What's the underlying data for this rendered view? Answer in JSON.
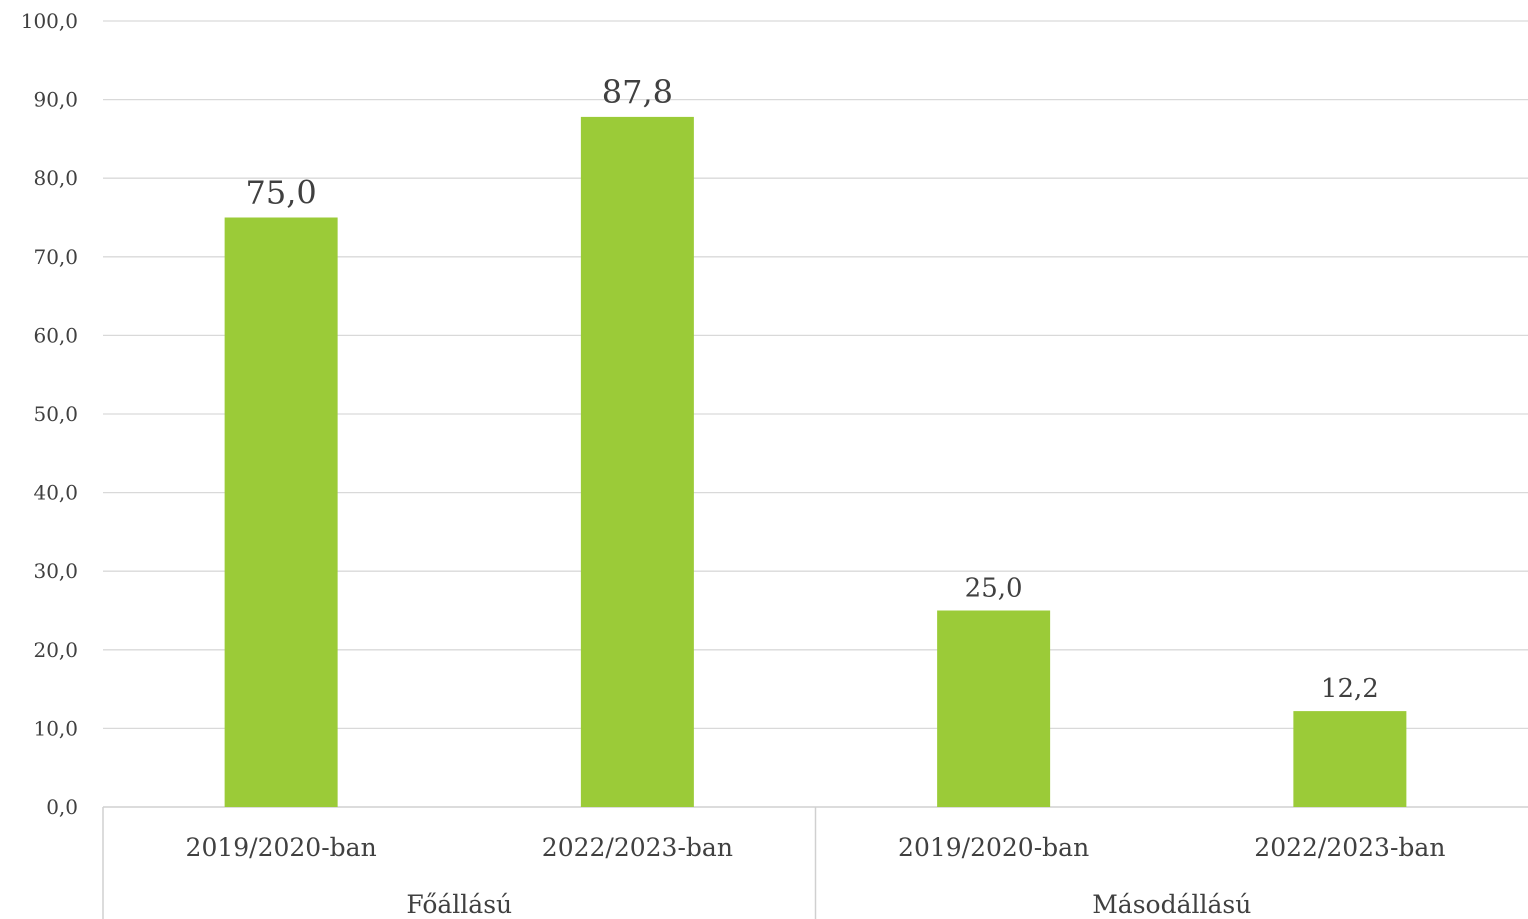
{
  "chart_data": {
    "type": "bar",
    "title": "",
    "xlabel": "",
    "ylabel": "",
    "ylim": [
      0,
      100
    ],
    "y_ticks": [
      "0,0",
      "10,0",
      "20,0",
      "30,0",
      "40,0",
      "50,0",
      "60,0",
      "70,0",
      "80,0",
      "90,0",
      "100,0"
    ],
    "grid": true,
    "legend": "none",
    "bar_color": "#9BCB38",
    "groups": [
      {
        "label": "Főállású",
        "categories": [
          "2019/2020-ban",
          "2022/2023-ban"
        ],
        "values": [
          75.0,
          87.8
        ],
        "value_labels": [
          "75,0",
          "87,8"
        ]
      },
      {
        "label": "Másodállású",
        "categories": [
          "2019/2020-ban",
          "2022/2023-ban"
        ],
        "values": [
          25.0,
          12.2
        ],
        "value_labels": [
          "25,0",
          "12,2"
        ]
      }
    ]
  }
}
